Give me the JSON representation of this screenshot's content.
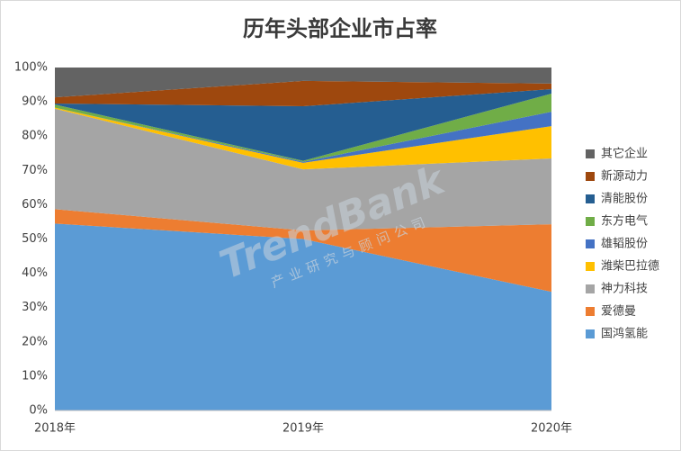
{
  "chart_data": {
    "type": "stacked_area",
    "title": "历年头部企业市占率",
    "watermark": "TrendBank",
    "watermark_subtitle": "产业研究与顾问公司",
    "categories": [
      "2018年",
      "2019年",
      "2020年"
    ],
    "series": [
      {
        "name": "国鸿氢能",
        "color": "#5b9bd5",
        "values": [
          54.5,
          50.0,
          34.6
        ]
      },
      {
        "name": "爱德曼",
        "color": "#ed7d31",
        "values": [
          4.2,
          2.5,
          19.7
        ]
      },
      {
        "name": "神力科技",
        "color": "#a5a5a5",
        "values": [
          29.3,
          17.8,
          19.2
        ]
      },
      {
        "name": "潍柴巴拉德",
        "color": "#ffc000",
        "values": [
          0.3,
          1.9,
          9.4
        ]
      },
      {
        "name": "雄韬股份",
        "color": "#4472c4",
        "values": [
          0.0,
          0.3,
          4.2
        ]
      },
      {
        "name": "东方电气",
        "color": "#70ad47",
        "values": [
          0.9,
          0.3,
          5.3
        ]
      },
      {
        "name": "清能股份",
        "color": "#255e91",
        "values": [
          0.3,
          15.9,
          1.3
        ]
      },
      {
        "name": "新源动力",
        "color": "#9e480e",
        "values": [
          1.8,
          7.4,
          1.6
        ]
      },
      {
        "name": "其它企业",
        "color": "#636363",
        "values": [
          8.7,
          3.9,
          4.7
        ]
      }
    ],
    "ylim": [
      0,
      100
    ],
    "yticks": [
      {
        "value": 0,
        "label": "0%"
      },
      {
        "value": 10,
        "label": "10%"
      },
      {
        "value": 20,
        "label": "20%"
      },
      {
        "value": 30,
        "label": "30%"
      },
      {
        "value": 40,
        "label": "40%"
      },
      {
        "value": 50,
        "label": "50%"
      },
      {
        "value": 60,
        "label": "60%"
      },
      {
        "value": 70,
        "label": "70%"
      },
      {
        "value": 80,
        "label": "80%"
      },
      {
        "value": 90,
        "label": "90%"
      },
      {
        "value": 100,
        "label": "100%"
      }
    ],
    "grid": false,
    "legend": "right"
  }
}
